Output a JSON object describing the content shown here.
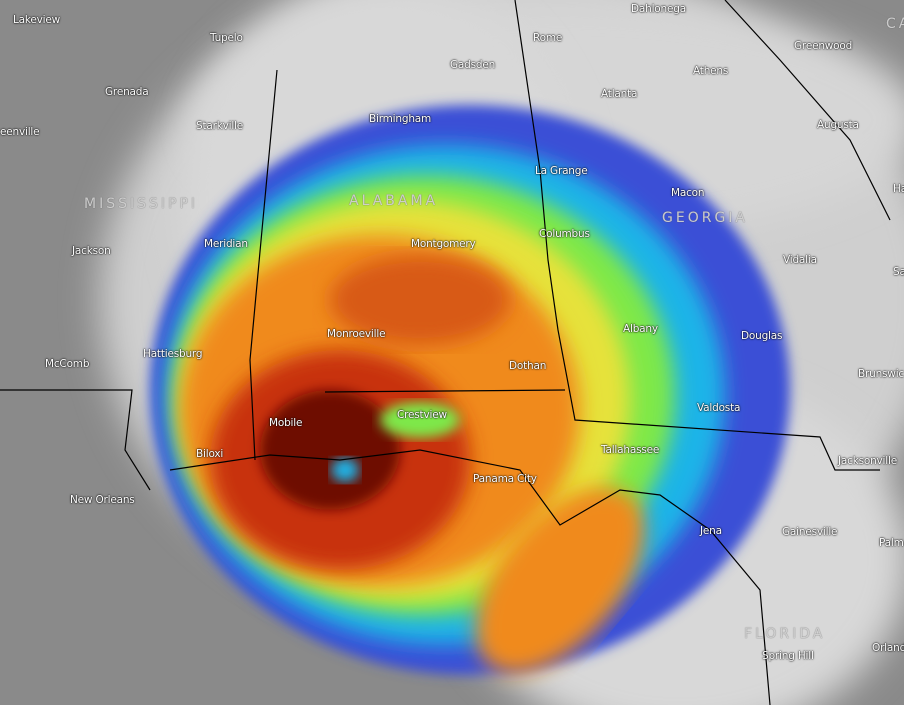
{
  "map": {
    "type": "infrared satellite imagery",
    "colors": {
      "background_gray": "#8a8a8a",
      "cloud_white": "#e6e6e6",
      "blue": "#3a4fd6",
      "cyan": "#1fb4e8",
      "green": "#7ee84a",
      "yellow": "#e6e23a",
      "orange": "#f08a1e",
      "red": "#c8320a",
      "dark_red": "#6e0a05"
    },
    "states": [
      "MISSISSIPPI",
      "ALABAMA",
      "GEORGIA",
      "FLORIDA",
      "CA"
    ],
    "cities": [
      "Lakeview",
      "Tupelo",
      "Grenada",
      "Starkville",
      "eenville",
      "Jackson",
      "Meridian",
      "Birmingham",
      "Gadsden",
      "Rome",
      "Dahlonega",
      "Atlanta",
      "Athens",
      "Greenwood",
      "Augusta",
      "La Grange",
      "Macon",
      "Columbus",
      "Montgomery",
      "Monroeville",
      "Vidalia",
      "Albany",
      "Douglas",
      "Hattiesburg",
      "McComb",
      "Dothan",
      "Valdosta",
      "Mobile",
      "Crestview",
      "Biloxi",
      "Tallahassee",
      "Panama City",
      "New Orleans",
      "Jena",
      "Gainesville",
      "Jacksonville",
      "Brunswic",
      "Palm",
      "Orland",
      "Spring Hill",
      "Ha",
      "Sa"
    ]
  }
}
